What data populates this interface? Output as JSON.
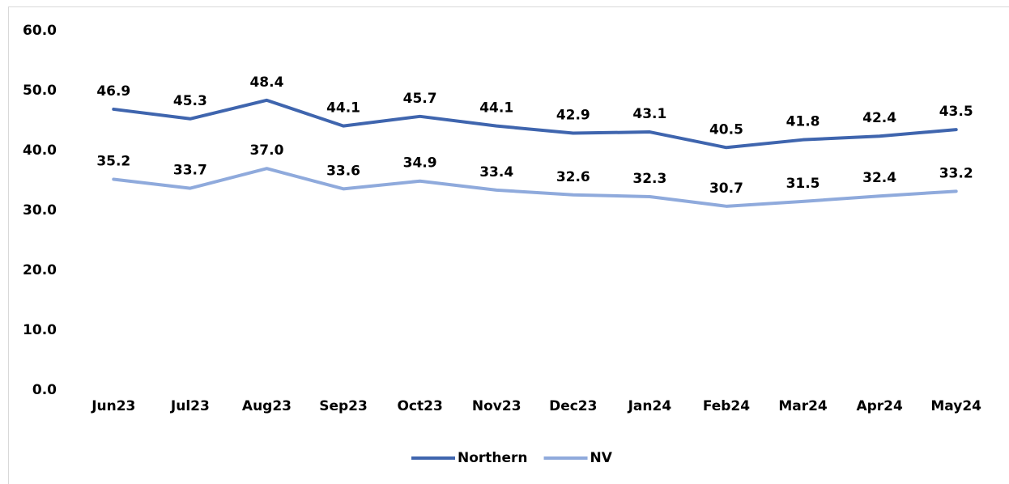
{
  "chart_data": {
    "type": "line",
    "categories": [
      "Jun23",
      "Jul23",
      "Aug23",
      "Sep23",
      "Oct23",
      "Nov23",
      "Dec23",
      "Jan24",
      "Feb24",
      "Mar24",
      "Apr24",
      "May24"
    ],
    "series": [
      {
        "name": "Northern",
        "color": "#3f65ae",
        "values": [
          46.9,
          45.3,
          48.4,
          44.1,
          45.7,
          44.1,
          42.9,
          43.1,
          40.5,
          41.8,
          42.4,
          43.5
        ],
        "value_labels": [
          "46.9",
          "45.3",
          "48.4",
          "44.1",
          "45.7",
          "44.1",
          "42.9",
          "43.1",
          "40.5",
          "41.8",
          "42.4",
          "43.5"
        ]
      },
      {
        "name": "NV",
        "color": "#8faadc",
        "values": [
          35.2,
          33.7,
          37.0,
          33.6,
          34.9,
          33.4,
          32.6,
          32.3,
          30.7,
          31.5,
          32.4,
          33.2
        ],
        "value_labels": [
          "35.2",
          "33.7",
          "37.0",
          "33.6",
          "34.9",
          "33.4",
          "32.6",
          "32.3",
          "30.7",
          "31.5",
          "32.4",
          "33.2"
        ]
      }
    ],
    "ylim": [
      0,
      60
    ],
    "yticks": [
      {
        "value": 0,
        "label": "0.0"
      },
      {
        "value": 10,
        "label": "10.0"
      },
      {
        "value": 20,
        "label": "20.0"
      },
      {
        "value": 30,
        "label": "30.0"
      },
      {
        "value": 40,
        "label": "40.0"
      },
      {
        "value": 50,
        "label": "50.0"
      },
      {
        "value": 60,
        "label": "60.0"
      }
    ],
    "grid": false,
    "legend": "bottom"
  }
}
